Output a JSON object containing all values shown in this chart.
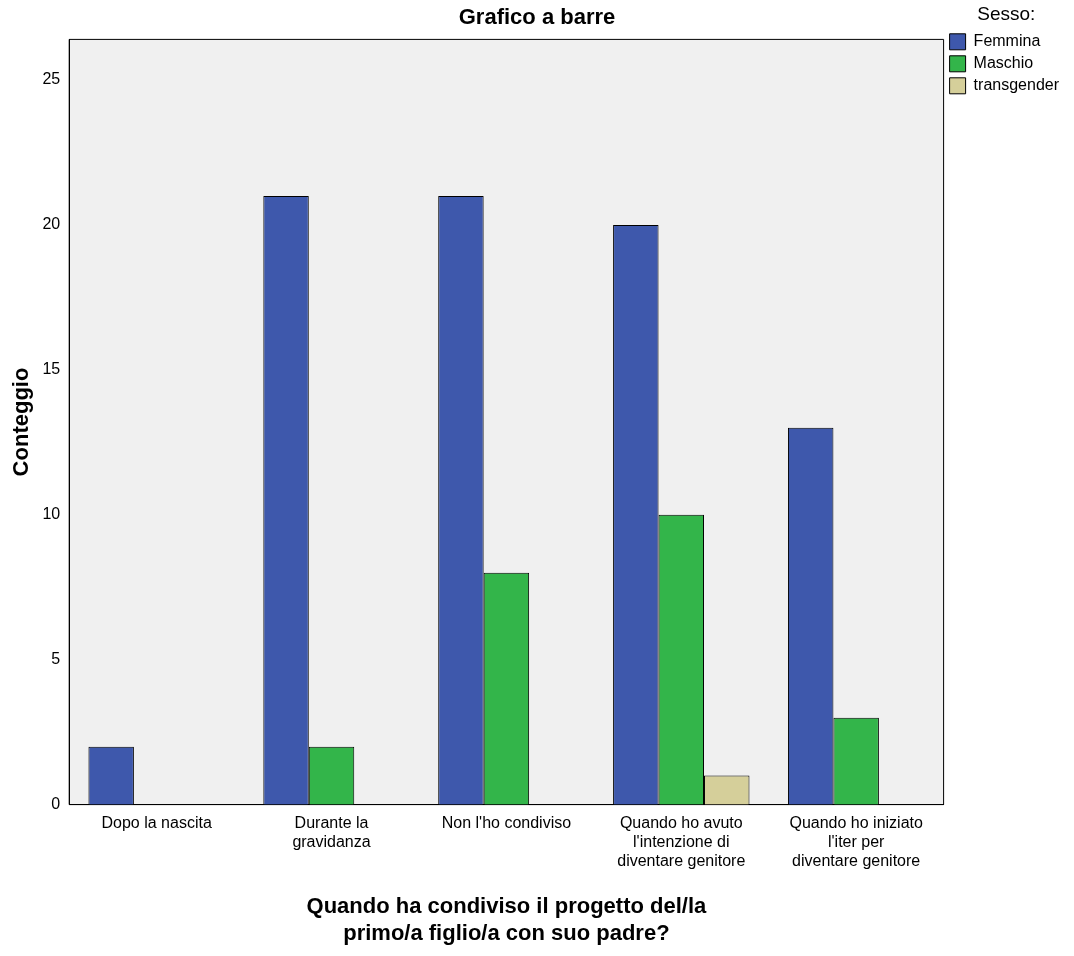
{
  "chart_data": {
    "type": "bar",
    "title": "Grafico a barre",
    "xlabel": "Quando ha condiviso il progetto del/la primo/a figlio/a con suo padre?",
    "ylabel": "Conteggio",
    "legend_title": "Sesso:",
    "categories": [
      "Dopo la nascita",
      "Durante la gravidanza",
      "Non l'ho condiviso",
      "Quando ho avuto l'intenzione di diventare genitore",
      "Quando ho iniziato l'iter per diventare genitore"
    ],
    "series": [
      {
        "name": "Femmina",
        "color": "#3e58ac",
        "values": [
          2,
          21,
          21,
          20,
          13
        ]
      },
      {
        "name": "Maschio",
        "color": "#33b54a",
        "values": [
          null,
          2,
          8,
          10,
          3
        ]
      },
      {
        "name": "transgender",
        "color": "#d5cf9a",
        "values": [
          null,
          null,
          null,
          1,
          null
        ]
      }
    ],
    "ylim": [
      0,
      26.4
    ],
    "yticks": [
      0,
      5,
      10,
      15,
      20,
      25
    ],
    "grid": false,
    "legend": "right"
  }
}
